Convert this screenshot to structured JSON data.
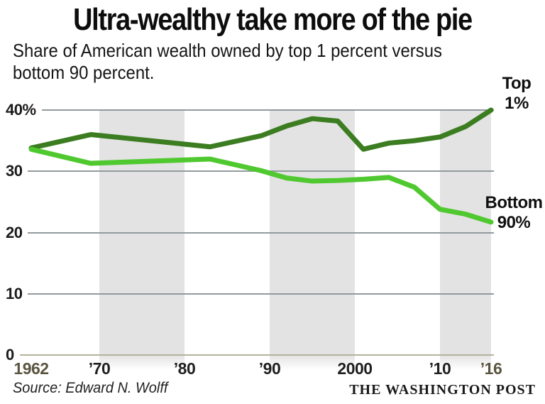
{
  "header": {
    "title": "Ultra-wealthy take more of the pie",
    "subtitle_line1": "Share of American wealth owned by top 1 percent versus",
    "subtitle_line2": "bottom 90 percent."
  },
  "footer": {
    "source": "Source: Edward N. Wolff",
    "brand": "THE WASHINGTON POST"
  },
  "chart_data": {
    "type": "line",
    "title": "Ultra-wealthy take more of the pie",
    "subtitle": "Share of American wealth owned by top 1 percent versus bottom 90 percent.",
    "x_years": [
      1962,
      1969,
      1983,
      1989,
      1992,
      1995,
      1998,
      2001,
      2004,
      2007,
      2010,
      2013,
      2016
    ],
    "series": [
      {
        "name": "Top 1%",
        "color": "#3b7d20",
        "values": [
          33.8,
          36.0,
          34.0,
          35.8,
          37.4,
          38.6,
          38.2,
          33.6,
          34.6,
          35.0,
          35.6,
          37.3,
          40.0
        ]
      },
      {
        "name": "Bottom 90%",
        "color": "#4fc92f",
        "values": [
          33.6,
          31.3,
          32.0,
          30.1,
          28.9,
          28.4,
          28.5,
          28.7,
          29.0,
          27.4,
          23.8,
          23.0,
          21.7
        ]
      }
    ],
    "y_axis": {
      "range": [
        0,
        40
      ],
      "ticks": [
        {
          "label": "40%",
          "value": 40
        },
        {
          "label": "30",
          "value": 30
        },
        {
          "label": "20",
          "value": 20
        },
        {
          "label": "10",
          "value": 10
        },
        {
          "label": "0",
          "value": 0
        }
      ]
    },
    "x_axis": {
      "ticks": [
        {
          "label": "1962",
          "year": 1962,
          "muted": true
        },
        {
          "label": "’70",
          "year": 1970,
          "muted": false
        },
        {
          "label": "’80",
          "year": 1980,
          "muted": false
        },
        {
          "label": "’90",
          "year": 1990,
          "muted": false
        },
        {
          "label": "2000",
          "year": 2000,
          "muted": false
        },
        {
          "label": "’10",
          "year": 2010,
          "muted": false
        },
        {
          "label": "’16",
          "year": 2016,
          "muted": true
        }
      ]
    },
    "shaded_bands": [
      {
        "from": 1970,
        "to": 1980
      },
      {
        "from": 1990,
        "to": 2000
      },
      {
        "from": 2010,
        "to": 2016
      }
    ],
    "annotations": [
      {
        "series": "Top 1%",
        "lines": [
          "Top",
          "1%"
        ]
      },
      {
        "series": "Bottom 90%",
        "lines": [
          "Bottom",
          "90%"
        ]
      }
    ],
    "colors": {
      "top1": "#3b7d20",
      "bottom90": "#4fc92f",
      "band": "#e3e3e3",
      "gridline": "#919b9d",
      "baseline": "#b5b29a",
      "muted_tick": "#5a5440"
    },
    "legend_position": "end-of-line labels",
    "grid": true
  }
}
